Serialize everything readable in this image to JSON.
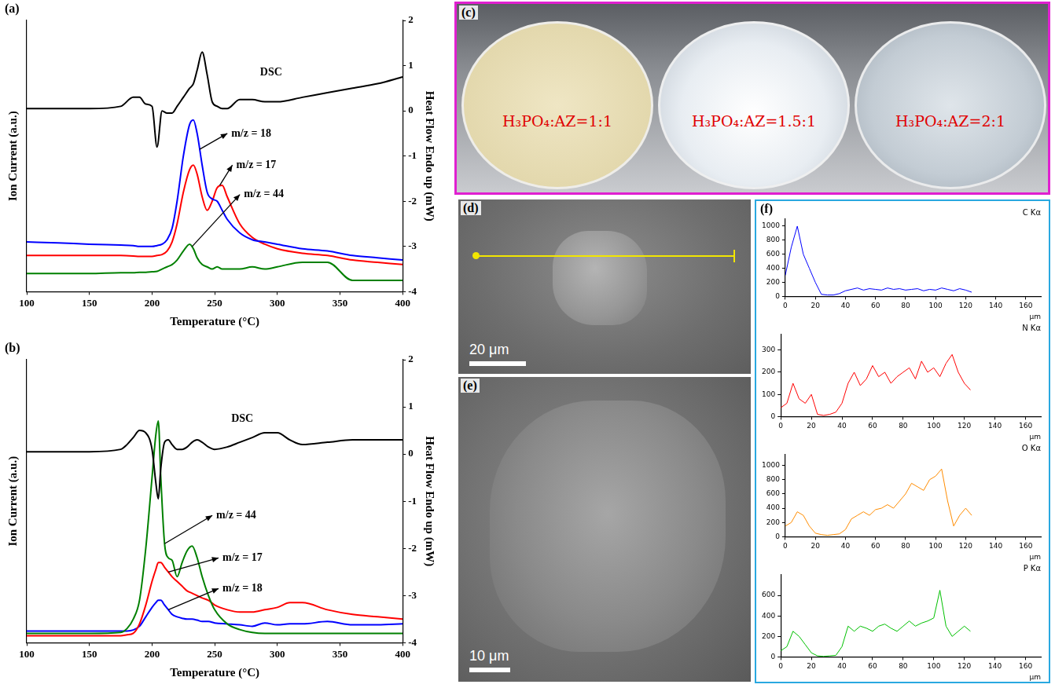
{
  "chart_data": [
    {
      "type": "line",
      "label": "(a)",
      "x_label": "Temperature (°C)",
      "y_label": "Ion Current (a.u.)",
      "y2_label": "Heat Flow Endo up (mW)",
      "x": [
        100,
        125,
        150,
        175,
        185,
        190,
        195,
        200,
        204,
        208,
        212,
        216,
        220,
        225,
        230,
        233,
        236,
        240,
        244,
        248,
        252,
        256,
        260,
        270,
        280,
        290,
        300,
        320,
        340,
        360,
        380,
        400
      ],
      "xlim": [
        100,
        400
      ],
      "xticks": [
        100,
        150,
        200,
        250,
        300,
        350,
        400
      ],
      "ylim": [
        -4,
        2
      ],
      "yticks": [],
      "y2lim": [
        -4,
        2
      ],
      "y2ticks": [
        -4,
        -3,
        -2,
        -1,
        0,
        1,
        2
      ],
      "grid": false,
      "series": [
        {
          "name": "DSC",
          "color": "#000000",
          "axis": "y2",
          "values": [
            0.05,
            0.05,
            0.05,
            0.1,
            0.3,
            0.3,
            0.15,
            0.1,
            -0.8,
            0,
            -0.05,
            -0.05,
            0.1,
            0.3,
            0.5,
            0.6,
            0.9,
            1.3,
            0.8,
            0.2,
            0.1,
            0.05,
            0.05,
            0.25,
            0.25,
            0.2,
            0.2,
            0.3,
            0.4,
            0.5,
            0.6,
            0.75
          ]
        },
        {
          "name": "m/z = 18",
          "color": "#0000ff",
          "values": [
            -2.9,
            -2.92,
            -2.95,
            -2.97,
            -2.98,
            -3.0,
            -3.0,
            -3.0,
            -2.98,
            -2.95,
            -2.85,
            -2.6,
            -2.0,
            -1.0,
            -0.3,
            -0.2,
            -0.5,
            -1.2,
            -1.8,
            -1.95,
            -2.0,
            -2.2,
            -2.4,
            -2.7,
            -2.85,
            -2.9,
            -2.95,
            -3.05,
            -3.1,
            -3.2,
            -3.25,
            -3.3
          ]
        },
        {
          "name": "m/z = 17",
          "color": "#ff0000",
          "values": [
            -3.2,
            -3.2,
            -3.2,
            -3.2,
            -3.21,
            -3.22,
            -3.22,
            -3.22,
            -3.2,
            -3.18,
            -3.1,
            -2.9,
            -2.5,
            -1.8,
            -1.3,
            -1.2,
            -1.4,
            -1.9,
            -2.2,
            -2.0,
            -1.7,
            -1.65,
            -1.9,
            -2.5,
            -2.8,
            -2.95,
            -3.05,
            -3.15,
            -3.2,
            -3.3,
            -3.35,
            -3.4
          ]
        },
        {
          "name": "m/z = 44",
          "color": "#008000",
          "values": [
            -3.6,
            -3.6,
            -3.6,
            -3.58,
            -3.58,
            -3.57,
            -3.57,
            -3.56,
            -3.55,
            -3.5,
            -3.45,
            -3.4,
            -3.3,
            -3.1,
            -2.95,
            -3.05,
            -3.25,
            -3.4,
            -3.45,
            -3.5,
            -3.45,
            -3.5,
            -3.5,
            -3.5,
            -3.45,
            -3.5,
            -3.45,
            -3.35,
            -3.35,
            -3.75,
            -3.75,
            -3.75
          ]
        }
      ],
      "annotations": [
        {
          "series": "DSC",
          "x": 285,
          "y": 0.85
        },
        {
          "series": "m/z = 18",
          "x": 262,
          "y": -0.5,
          "arrow_x": 238,
          "arrow_y": -0.85
        },
        {
          "series": "m/z = 17",
          "x": 266,
          "y": -1.2,
          "arrow_x": 254,
          "arrow_y": -1.65
        },
        {
          "series": "m/z = 44",
          "x": 272,
          "y": -1.85,
          "arrow_x": 232,
          "arrow_y": -3.0
        }
      ]
    },
    {
      "type": "line",
      "label": "(b)",
      "x_label": "Temperature (°C)",
      "y_label": "Ion Current (a.u.)",
      "y2_label": "Heat Flow Endo up (mW)",
      "x": [
        100,
        125,
        150,
        175,
        180,
        185,
        190,
        195,
        200,
        203,
        205,
        207,
        210,
        213,
        216,
        220,
        224,
        228,
        232,
        236,
        240,
        245,
        250,
        260,
        270,
        280,
        290,
        300,
        310,
        320,
        340,
        360,
        380,
        400
      ],
      "xlim": [
        100,
        400
      ],
      "xticks": [
        100,
        150,
        200,
        250,
        300,
        350,
        400
      ],
      "ylim": [
        -4,
        2
      ],
      "yticks": [],
      "y2lim": [
        -4,
        2
      ],
      "y2ticks": [
        -4,
        -3,
        -2,
        -1,
        0,
        1,
        2
      ],
      "grid": false,
      "series": [
        {
          "name": "DSC",
          "color": "#000000",
          "axis": "y2",
          "values": [
            0.05,
            0.05,
            0.05,
            0.1,
            0.2,
            0.35,
            0.5,
            0.45,
            0.1,
            -0.6,
            -0.95,
            -0.3,
            0.25,
            0.3,
            0.2,
            0.1,
            0.1,
            0.15,
            0.25,
            0.3,
            0.25,
            0.15,
            0.1,
            0.15,
            0.25,
            0.35,
            0.45,
            0.45,
            0.3,
            0.2,
            0.25,
            0.3,
            0.3,
            0.3
          ]
        },
        {
          "name": "m/z = 44",
          "color": "#008000",
          "values": [
            -3.8,
            -3.8,
            -3.8,
            -3.78,
            -3.7,
            -3.5,
            -3.1,
            -2.0,
            -0.5,
            0.4,
            0.7,
            -0.5,
            -1.9,
            -2.2,
            -2.25,
            -2.6,
            -2.3,
            -2.05,
            -1.95,
            -2.2,
            -2.6,
            -3.0,
            -3.3,
            -3.6,
            -3.72,
            -3.78,
            -3.8,
            -3.8,
            -3.8,
            -3.8,
            -3.8,
            -3.8,
            -3.8,
            -3.8
          ]
        },
        {
          "name": "m/z = 17",
          "color": "#ff0000",
          "values": [
            -3.85,
            -3.85,
            -3.85,
            -3.85,
            -3.83,
            -3.8,
            -3.6,
            -3.2,
            -2.7,
            -2.45,
            -2.3,
            -2.3,
            -2.4,
            -2.5,
            -2.6,
            -2.7,
            -2.8,
            -2.9,
            -2.95,
            -3.0,
            -3.05,
            -3.1,
            -3.2,
            -3.3,
            -3.35,
            -3.35,
            -3.3,
            -3.25,
            -3.15,
            -3.15,
            -3.3,
            -3.4,
            -3.45,
            -3.5
          ]
        },
        {
          "name": "m/z = 18",
          "color": "#0000ff",
          "values": [
            -3.75,
            -3.75,
            -3.75,
            -3.75,
            -3.75,
            -3.73,
            -3.65,
            -3.45,
            -3.25,
            -3.15,
            -3.1,
            -3.1,
            -3.2,
            -3.3,
            -3.4,
            -3.45,
            -3.48,
            -3.5,
            -3.5,
            -3.52,
            -3.55,
            -3.55,
            -3.58,
            -3.6,
            -3.62,
            -3.65,
            -3.58,
            -3.62,
            -3.6,
            -3.6,
            -3.55,
            -3.62,
            -3.62,
            -3.6
          ]
        }
      ],
      "annotations": [
        {
          "series": "DSC",
          "x": 262,
          "y": 0.75
        },
        {
          "series": "m/z = 44",
          "x": 250,
          "y": -1.3,
          "arrow_x": 210,
          "arrow_y": -1.9
        },
        {
          "series": "m/z = 17",
          "x": 255,
          "y": -2.2,
          "arrow_x": 213,
          "arrow_y": -2.5
        },
        {
          "series": "m/z = 18",
          "x": 255,
          "y": -2.85,
          "arrow_x": 213,
          "arrow_y": -3.3
        }
      ]
    },
    {
      "type": "line",
      "label": "(f)",
      "title": "C Kα",
      "x_label": "μm",
      "x": [
        0,
        4,
        8,
        12,
        16,
        20,
        24,
        28,
        32,
        36,
        40,
        44,
        48,
        52,
        56,
        60,
        64,
        68,
        72,
        76,
        80,
        84,
        88,
        92,
        96,
        100,
        104,
        108,
        112,
        116,
        120,
        124
      ],
      "xlim": [
        0,
        170
      ],
      "xticks": [
        0,
        20,
        40,
        60,
        80,
        100,
        120,
        140,
        160
      ],
      "ylim": [
        0,
        1100
      ],
      "yticks": [
        0,
        200,
        400,
        600,
        800,
        1000
      ],
      "grid": false,
      "color": "#0000ff",
      "values": [
        300,
        700,
        1000,
        600,
        400,
        200,
        30,
        20,
        20,
        40,
        80,
        100,
        120,
        90,
        110,
        100,
        90,
        120,
        100,
        110,
        90,
        100,
        110,
        80,
        100,
        90,
        120,
        100,
        80,
        110,
        90,
        60
      ]
    },
    {
      "type": "line",
      "title": "N Kα",
      "x_label": "μm",
      "x": [
        0,
        4,
        8,
        12,
        16,
        20,
        24,
        28,
        32,
        36,
        40,
        44,
        48,
        52,
        56,
        60,
        64,
        68,
        72,
        76,
        80,
        84,
        88,
        92,
        96,
        100,
        104,
        108,
        112,
        116,
        120,
        124
      ],
      "xlim": [
        0,
        170
      ],
      "xticks": [
        0,
        20,
        40,
        60,
        80,
        100,
        120,
        140,
        160
      ],
      "ylim": [
        0,
        370
      ],
      "yticks": [
        0,
        100,
        200,
        300
      ],
      "grid": false,
      "color": "#ff0000",
      "values": [
        40,
        60,
        150,
        80,
        60,
        100,
        10,
        5,
        10,
        20,
        60,
        150,
        200,
        140,
        170,
        230,
        180,
        200,
        150,
        180,
        200,
        220,
        170,
        250,
        200,
        220,
        180,
        240,
        280,
        200,
        150,
        120
      ]
    },
    {
      "type": "line",
      "title": "O Kα",
      "x_label": "μm",
      "x": [
        0,
        4,
        8,
        12,
        16,
        20,
        24,
        28,
        32,
        36,
        40,
        44,
        48,
        52,
        56,
        60,
        64,
        68,
        72,
        76,
        80,
        84,
        88,
        92,
        96,
        100,
        104,
        108,
        112,
        116,
        120,
        124
      ],
      "xlim": [
        0,
        170
      ],
      "xticks": [
        0,
        20,
        40,
        60,
        80,
        100,
        120,
        140,
        160
      ],
      "ylim": [
        0,
        1150
      ],
      "yticks": [
        0,
        200,
        400,
        600,
        800,
        1000
      ],
      "grid": false,
      "color": "#ff8c00",
      "values": [
        150,
        200,
        350,
        300,
        150,
        50,
        30,
        20,
        30,
        40,
        100,
        250,
        300,
        350,
        300,
        380,
        400,
        450,
        400,
        500,
        600,
        750,
        700,
        650,
        800,
        850,
        950,
        500,
        150,
        300,
        400,
        300
      ]
    },
    {
      "type": "line",
      "title": "P Kα",
      "x_label": "μm",
      "x": [
        0,
        4,
        8,
        12,
        16,
        20,
        24,
        28,
        32,
        36,
        40,
        44,
        48,
        52,
        56,
        60,
        64,
        68,
        72,
        76,
        80,
        84,
        88,
        92,
        96,
        100,
        104,
        108,
        112,
        116,
        120,
        124
      ],
      "xlim": [
        0,
        170
      ],
      "xticks": [
        0,
        20,
        40,
        60,
        80,
        100,
        120,
        140,
        160
      ],
      "ylim": [
        0,
        800
      ],
      "yticks": [
        0,
        200,
        400,
        600
      ],
      "grid": false,
      "color": "#00c000",
      "values": [
        60,
        100,
        250,
        200,
        120,
        40,
        10,
        5,
        10,
        15,
        100,
        300,
        250,
        300,
        280,
        250,
        300,
        320,
        280,
        250,
        300,
        350,
        300,
        330,
        350,
        380,
        650,
        300,
        200,
        250,
        300,
        250
      ]
    }
  ],
  "images": [
    {
      "label": "(c)",
      "texts": [
        "H₃PO₄:AZ=1:1",
        "H₃PO₄:AZ=1.5:1",
        "H₃PO₄:AZ=2:1"
      ]
    },
    {
      "label": "(d)",
      "scale_bar": "20 μm"
    },
    {
      "label": "(e)",
      "scale_bar": "10 μm"
    }
  ]
}
